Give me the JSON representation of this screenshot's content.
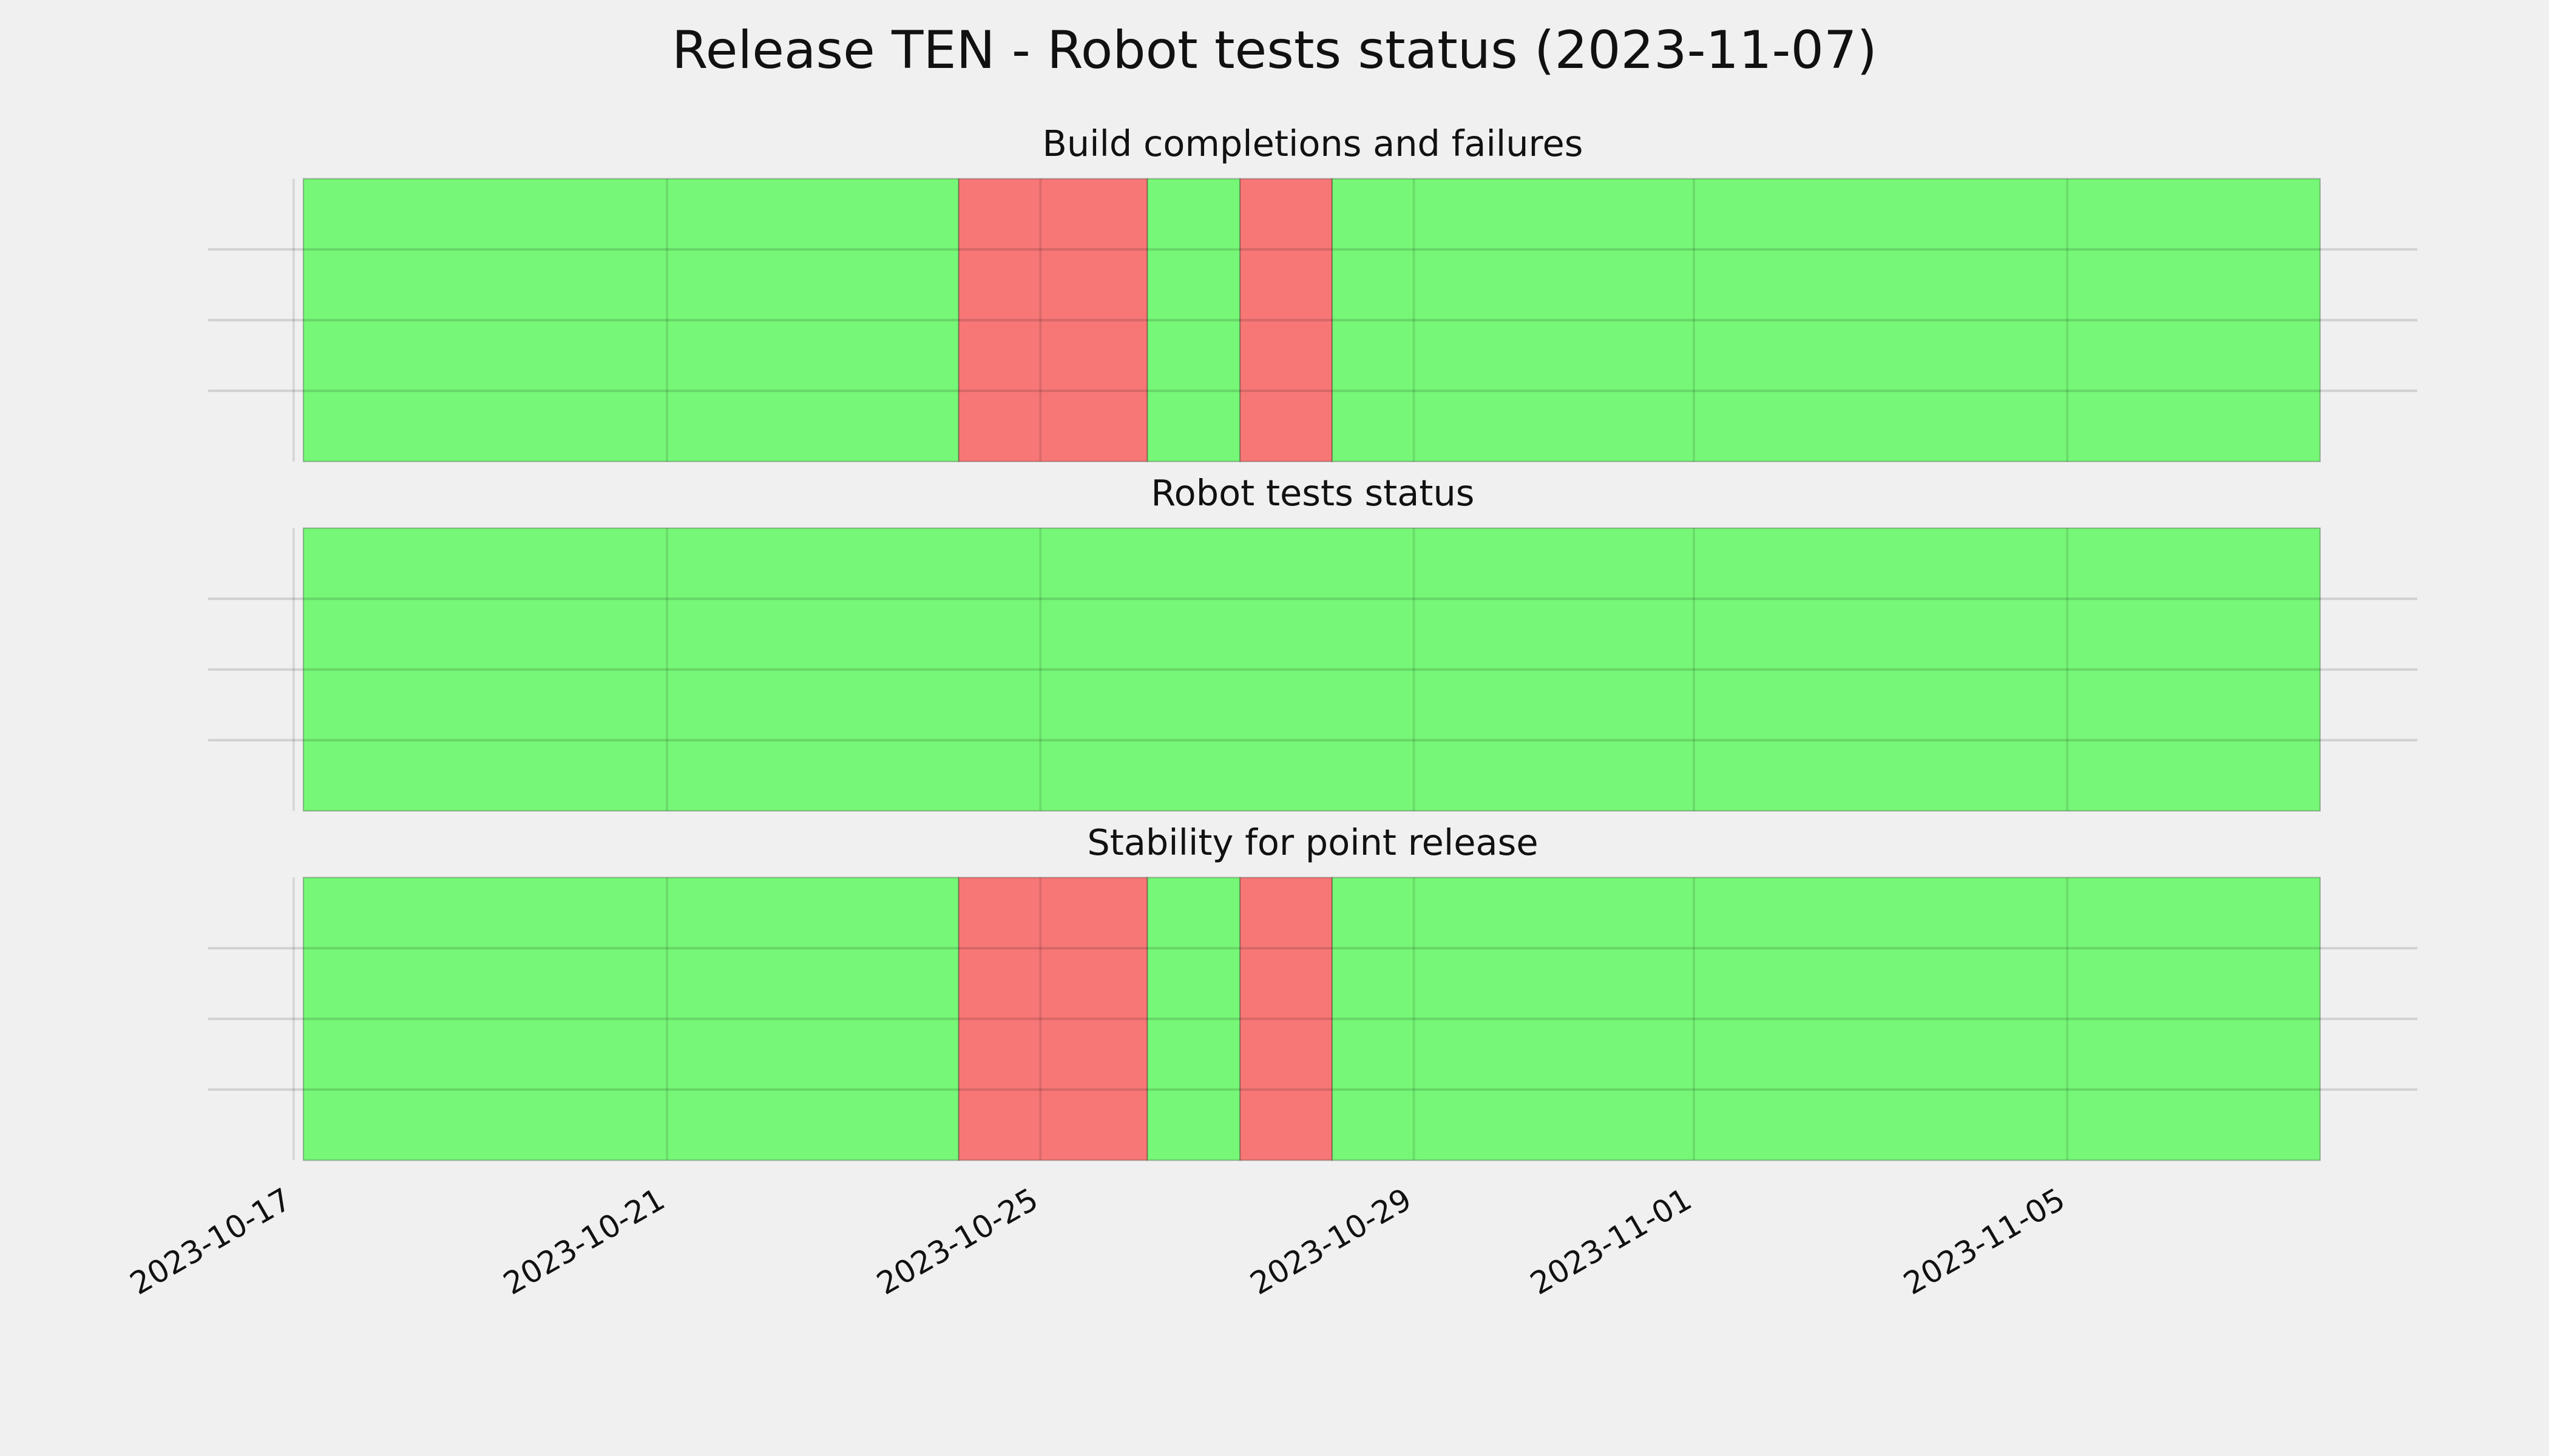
{
  "title": "Release TEN - Robot tests status (2023-11-07)",
  "chart_data": [
    {
      "type": "timeline",
      "title": "Build completions and failures",
      "segments": [
        {
          "start": "2023-10-17T02:30",
          "end": "2023-10-24T03:00",
          "color": "#77f777"
        },
        {
          "start": "2023-10-24T03:00",
          "end": "2023-10-26T03:30",
          "color": "#f77777"
        },
        {
          "start": "2023-10-26T03:30",
          "end": "2023-10-27T03:20",
          "color": "#77f777"
        },
        {
          "start": "2023-10-27T03:20",
          "end": "2023-10-28T03:00",
          "color": "#f77777"
        },
        {
          "start": "2023-10-28T03:00",
          "end": "2023-11-07T17:00",
          "color": "#77f777"
        }
      ],
      "xlim": [
        "2023-10-16T02:00",
        "2023-11-08T18:00"
      ],
      "xticks": [
        "2023-10-17",
        "2023-10-21",
        "2023-10-25",
        "2023-10-29",
        "2023-11-01",
        "2023-11-05"
      ],
      "ylim": [
        0,
        1
      ],
      "yticks": [
        0.25,
        0.5,
        0.75
      ],
      "grid": true
    },
    {
      "type": "timeline",
      "title": "Robot tests status",
      "segments": [
        {
          "start": "2023-10-17T02:30",
          "end": "2023-11-07T17:00",
          "color": "#77f777"
        }
      ],
      "xlim": [
        "2023-10-16T02:00",
        "2023-11-08T18:00"
      ],
      "xticks": [
        "2023-10-17",
        "2023-10-21",
        "2023-10-25",
        "2023-10-29",
        "2023-11-01",
        "2023-11-05"
      ],
      "ylim": [
        0,
        1
      ],
      "yticks": [
        0.25,
        0.5,
        0.75
      ],
      "grid": true
    },
    {
      "type": "timeline",
      "title": "Stability for point release",
      "segments": [
        {
          "start": "2023-10-17T02:30",
          "end": "2023-10-24T03:00",
          "color": "#77f777"
        },
        {
          "start": "2023-10-24T03:00",
          "end": "2023-10-26T03:30",
          "color": "#f77777"
        },
        {
          "start": "2023-10-26T03:30",
          "end": "2023-10-27T03:20",
          "color": "#77f777"
        },
        {
          "start": "2023-10-27T03:20",
          "end": "2023-10-28T03:00",
          "color": "#f77777"
        },
        {
          "start": "2023-10-28T03:00",
          "end": "2023-11-07T17:00",
          "color": "#77f777"
        }
      ],
      "xlim": [
        "2023-10-16T02:00",
        "2023-11-08T18:00"
      ],
      "xticks": [
        "2023-10-17",
        "2023-10-21",
        "2023-10-25",
        "2023-10-29",
        "2023-11-01",
        "2023-11-05"
      ],
      "ylim": [
        0,
        1
      ],
      "yticks": [
        0.25,
        0.5,
        0.75
      ],
      "grid": true
    }
  ]
}
